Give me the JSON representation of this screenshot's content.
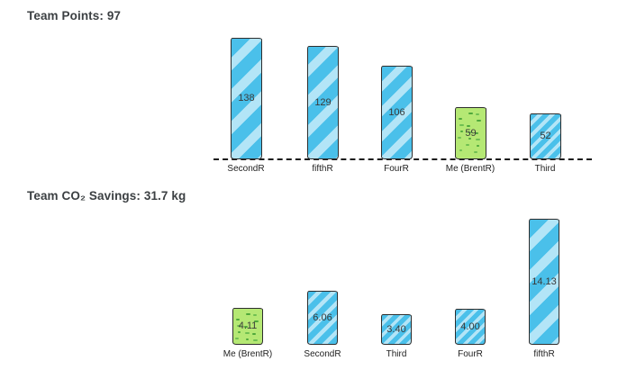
{
  "chart_data": [
    {
      "type": "bar",
      "title": "Team Points: 97",
      "categories": [
        "SecondR",
        "fifthR",
        "FourR",
        "Me (BrentR)",
        "Third"
      ],
      "values": [
        138,
        129,
        106,
        59,
        52
      ],
      "value_labels": [
        "138",
        "129",
        "106",
        "59",
        "52"
      ],
      "highlight_index": 3,
      "highlight_category": "Me (BrentR)",
      "xlabel": "",
      "ylabel": "",
      "ylim": [
        0,
        138
      ],
      "grid": false,
      "legend": false,
      "axis_dashed_baseline": true,
      "style": "hand-drawn-sketch"
    },
    {
      "type": "bar",
      "title": "Team CO₂ Savings: 31.7 kg",
      "categories": [
        "Me (BrentR)",
        "SecondR",
        "Third",
        "FourR",
        "fifthR"
      ],
      "values": [
        4.11,
        6.06,
        3.4,
        4.0,
        14.13
      ],
      "value_labels": [
        "4.11",
        "6.06",
        "3.40",
        "4.00",
        "14.13"
      ],
      "highlight_index": 0,
      "highlight_category": "Me (BrentR)",
      "xlabel": "",
      "ylabel": "",
      "ylim": [
        0,
        14.13
      ],
      "grid": false,
      "legend": false,
      "axis_dashed_baseline": false,
      "style": "hand-drawn-sketch"
    }
  ],
  "colors": {
    "background": "#ffffff",
    "bar_default": "#4ac0ea",
    "bar_stripe": "#b3e5f7",
    "bar_highlight": "#b5e874",
    "bar_highlight_speckle_dark": "#4fa83b",
    "bar_highlight_speckle_light": "#6fbf52",
    "bar_outline": "#2e2e2e",
    "axis_line": "#1c1c1c",
    "title_text": "#3c4043",
    "axis_label_text": "#212121",
    "value_label_text": "#3a3a3a"
  }
}
